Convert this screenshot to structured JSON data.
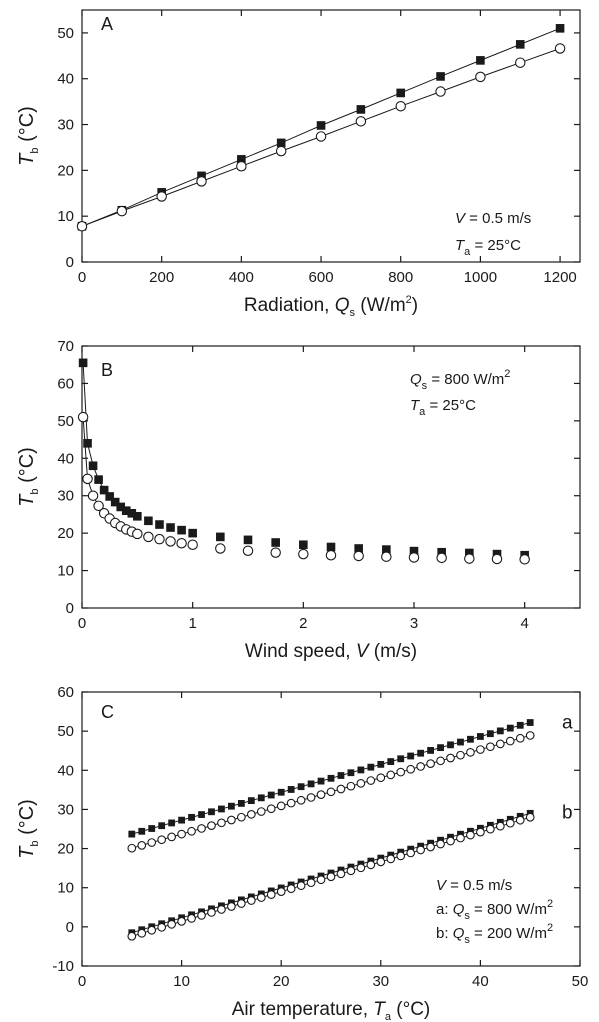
{
  "chart_data": [
    {
      "panel": "A",
      "type": "line",
      "ylabel_main": "T",
      "ylabel_sub": "b",
      "ylabel_unit": " (°C)",
      "xlabel_main": "Radiation, ",
      "xlabel_var": "Q",
      "xlabel_sub": "s",
      "xlabel_unit_pre": " (W/m",
      "xlabel_sup": "2",
      "xlabel_unit_post": ")",
      "xlim": [
        0,
        1250
      ],
      "ylim": [
        0,
        55
      ],
      "xticks": [
        0,
        200,
        400,
        600,
        800,
        1000,
        1200
      ],
      "yticks": [
        0,
        10,
        20,
        30,
        40,
        50
      ],
      "annotations": [
        {
          "var": "V",
          "sub": "",
          "text": " = 0.5 m/s",
          "sup": ""
        },
        {
          "var": "T",
          "sub": "a",
          "text": " = 25°C",
          "sup": ""
        }
      ],
      "series": [
        {
          "marker": "filled-square",
          "fit": true,
          "x": [
            0,
            100,
            200,
            300,
            400,
            500,
            600,
            700,
            800,
            900,
            1000,
            1100,
            1200
          ],
          "y": [
            7.8,
            11.3,
            15.2,
            18.8,
            22.4,
            26.0,
            29.8,
            33.3,
            36.9,
            40.5,
            44.0,
            47.5,
            51.0
          ]
        },
        {
          "marker": "open-circle",
          "fit": true,
          "x": [
            0,
            100,
            200,
            300,
            400,
            500,
            600,
            700,
            800,
            900,
            1000,
            1100,
            1200
          ],
          "y": [
            7.8,
            11.1,
            14.3,
            17.6,
            20.9,
            24.2,
            27.4,
            30.7,
            34.0,
            37.2,
            40.4,
            43.5,
            46.6
          ]
        }
      ]
    },
    {
      "panel": "B",
      "type": "scatter",
      "ylabel_main": "T",
      "ylabel_sub": "b",
      "ylabel_unit": " (°C)",
      "xlabel_main": "Wind speed, ",
      "xlabel_var": "V",
      "xlabel_sub": "",
      "xlabel_unit_pre": " (m/s)",
      "xlabel_sup": "",
      "xlabel_unit_post": "",
      "xlim": [
        0,
        4.5
      ],
      "ylim": [
        0,
        70
      ],
      "xticks": [
        0,
        1,
        2,
        3,
        4
      ],
      "yticks": [
        0,
        10,
        20,
        30,
        40,
        50,
        60,
        70
      ],
      "annotations": [
        {
          "var": "Q",
          "sub": "s",
          "text": " = 800 W/m",
          "sup": "2"
        },
        {
          "var": "T",
          "sub": "a",
          "text": " = 25°C",
          "sup": ""
        }
      ],
      "series": [
        {
          "marker": "filled-square",
          "fit": "curve",
          "x": [
            0.01,
            0.05,
            0.1,
            0.15,
            0.2,
            0.25,
            0.3,
            0.35,
            0.4,
            0.45,
            0.5,
            0.6,
            0.7,
            0.8,
            0.9,
            1.0,
            1.25,
            1.5,
            1.75,
            2.0,
            2.25,
            2.5,
            2.75,
            3.0,
            3.25,
            3.5,
            3.75,
            4.0
          ],
          "y": [
            65.5,
            44.0,
            38.0,
            34.3,
            31.5,
            29.8,
            28.3,
            27.0,
            26.0,
            25.3,
            24.5,
            23.3,
            22.3,
            21.5,
            20.8,
            20.0,
            19.0,
            18.2,
            17.5,
            16.9,
            16.3,
            15.9,
            15.6,
            15.2,
            14.9,
            14.7,
            14.4,
            14.1
          ]
        },
        {
          "marker": "open-circle",
          "fit": "curve",
          "x": [
            0.01,
            0.05,
            0.1,
            0.15,
            0.2,
            0.25,
            0.3,
            0.35,
            0.4,
            0.45,
            0.5,
            0.6,
            0.7,
            0.8,
            0.9,
            1.0,
            1.25,
            1.5,
            1.75,
            2.0,
            2.25,
            2.5,
            2.75,
            3.0,
            3.25,
            3.5,
            3.75,
            4.0
          ],
          "y": [
            51.0,
            34.5,
            30.0,
            27.3,
            25.3,
            23.9,
            22.7,
            21.8,
            21.0,
            20.4,
            19.8,
            19.0,
            18.4,
            17.8,
            17.3,
            16.9,
            15.9,
            15.3,
            14.8,
            14.4,
            14.1,
            13.9,
            13.7,
            13.5,
            13.4,
            13.2,
            13.1,
            13.0
          ]
        }
      ]
    },
    {
      "panel": "C",
      "type": "scatter",
      "ylabel_main": "T",
      "ylabel_sub": "b",
      "ylabel_unit": " (°C)",
      "xlabel_main": "Air temperature, ",
      "xlabel_var": "T",
      "xlabel_sub": "a",
      "xlabel_unit_pre": " (°C)",
      "xlabel_sup": "",
      "xlabel_unit_post": "",
      "xlim": [
        0,
        50
      ],
      "ylim": [
        -10,
        60
      ],
      "xticks": [
        0,
        10,
        20,
        30,
        40,
        50
      ],
      "yticks": [
        -10,
        0,
        10,
        20,
        30,
        40,
        50,
        60
      ],
      "annotations": [
        {
          "var": "V",
          "sub": "",
          "text": " = 0.5 m/s",
          "sup": "",
          "prefix": ""
        },
        {
          "var": "Q",
          "sub": "s",
          "text": " = 800 W/m",
          "sup": "2",
          "prefix": "a: "
        },
        {
          "var": "Q",
          "sub": "s",
          "text": " = 200 W/m",
          "sup": "2",
          "prefix": "b: "
        }
      ],
      "curve_labels": [
        {
          "text": "a",
          "at_y": 52
        },
        {
          "text": "b",
          "at_y": 29
        }
      ],
      "series": [
        {
          "marker": "filled-square",
          "group": "a",
          "x_start": 5,
          "x_end": 45,
          "x_step": 1,
          "y_start": 23.7,
          "y_end": 52.2
        },
        {
          "marker": "open-circle",
          "group": "a",
          "x_start": 5,
          "x_end": 45,
          "x_step": 1,
          "y_start": 20.1,
          "y_end": 48.9
        },
        {
          "marker": "filled-square",
          "group": "b",
          "x_start": 5,
          "x_end": 45,
          "x_step": 1,
          "y_start": -1.5,
          "y_end": 29.0
        },
        {
          "marker": "open-circle",
          "group": "b",
          "x_start": 5,
          "x_end": 45,
          "x_step": 1,
          "y_start": -2.4,
          "y_end": 28.0
        }
      ]
    }
  ]
}
